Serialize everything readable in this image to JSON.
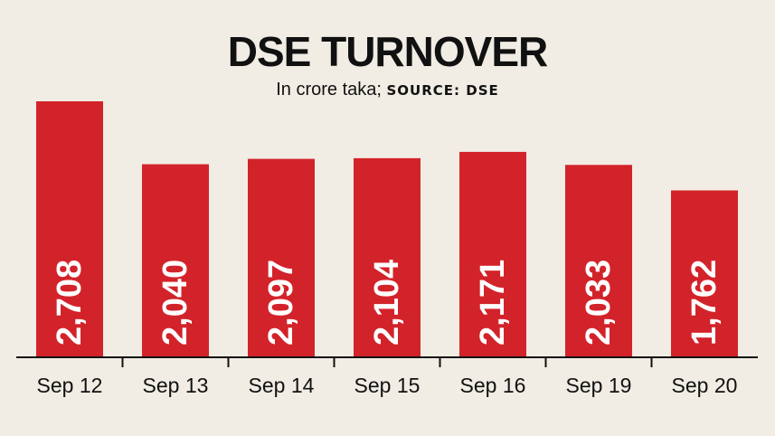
{
  "chart_data": {
    "type": "bar",
    "title": "DSE TURNOVER",
    "subtitle_unit": "In crore taka;",
    "subtitle_source": "SOURCE: DSE",
    "categories": [
      "Sep 12",
      "Sep 13",
      "Sep 14",
      "Sep 15",
      "Sep 16",
      "Sep 19",
      "Sep 20"
    ],
    "value_labels": [
      "2,708",
      "2,040",
      "2,097",
      "2,104",
      "2,171",
      "2,033",
      "1,762"
    ],
    "values": [
      2708,
      2040,
      2097,
      2104,
      2171,
      2033,
      1762
    ],
    "bar_color": "#d3232a",
    "label_color": "#ffffff",
    "xlabel": "",
    "ylabel": ""
  }
}
